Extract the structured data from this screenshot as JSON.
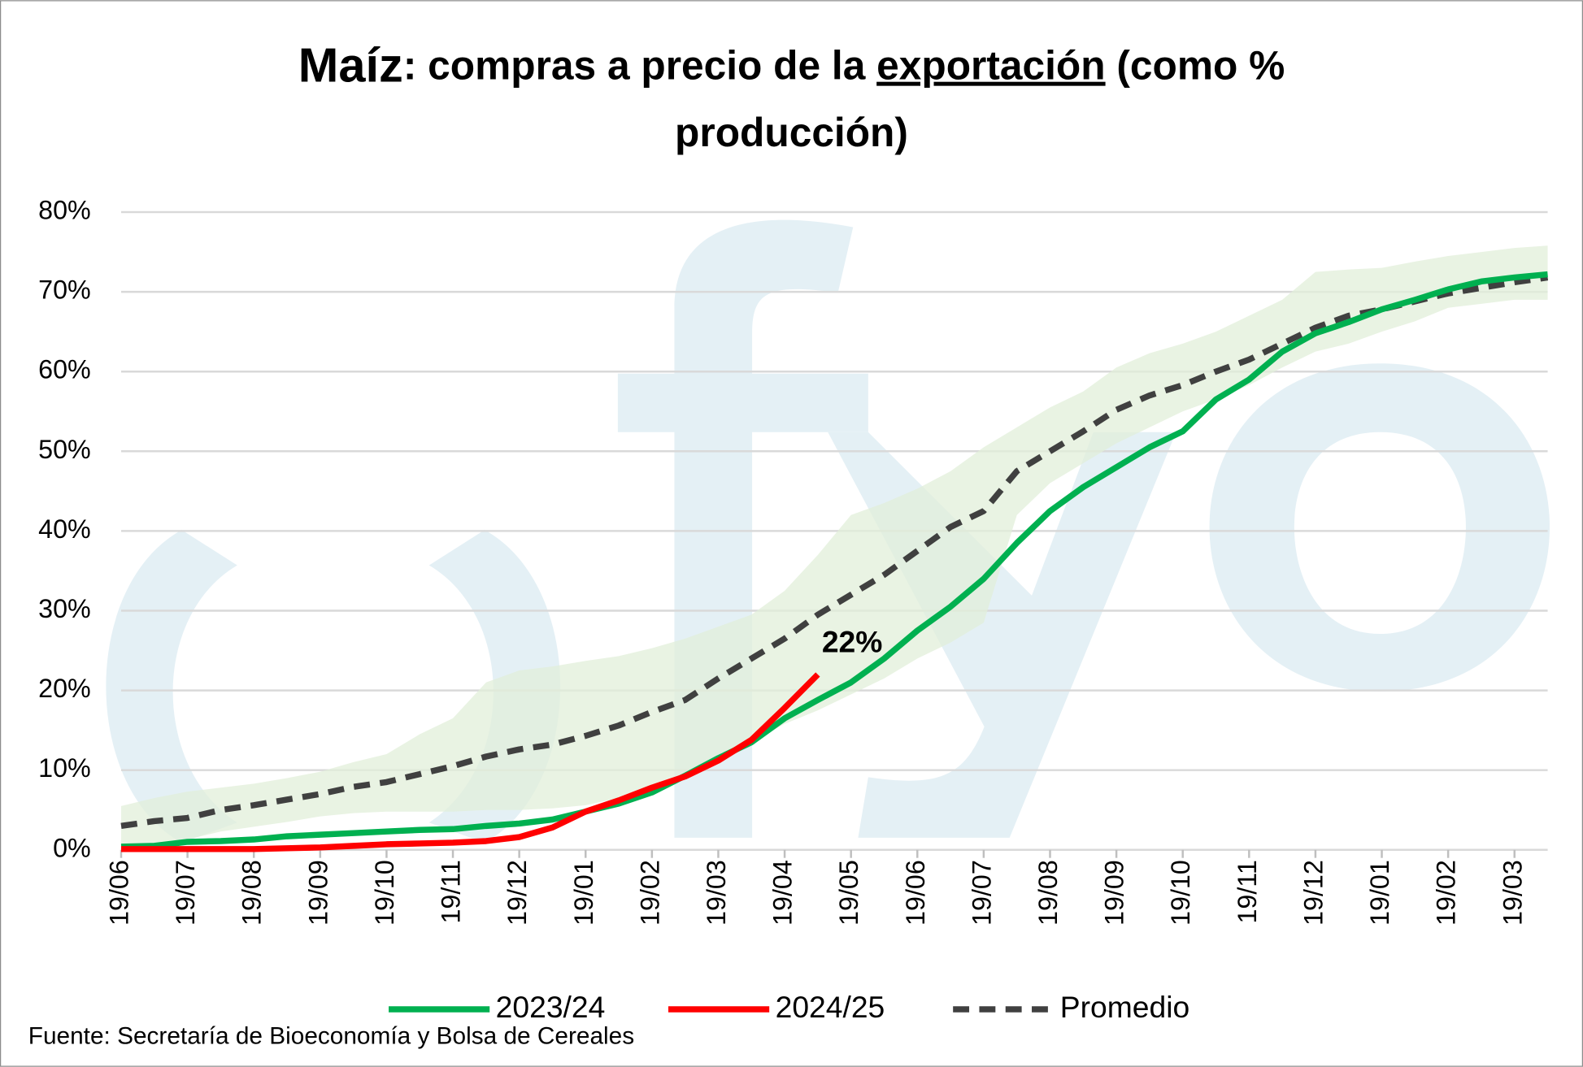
{
  "chart_data": {
    "type": "line",
    "title_parts": [
      "Maíz",
      ": compras a precio de la ",
      "exportación",
      " (como %",
      "producción)"
    ],
    "categories": [
      "19/06",
      null,
      "19/07",
      null,
      "19/08",
      null,
      "19/09",
      null,
      "19/10",
      null,
      "19/11",
      null,
      "19/12",
      null,
      "19/01",
      null,
      "19/02",
      null,
      "19/03",
      null,
      "19/04",
      null,
      "19/05",
      null,
      "19/06",
      null,
      "19/07",
      null,
      "19/08",
      null,
      "19/09",
      null,
      "19/10",
      null,
      "19/11",
      null,
      "19/12",
      null,
      "19/01",
      null,
      "19/02",
      null,
      "19/03",
      null
    ],
    "ylim": [
      0,
      80
    ],
    "yticks": [
      {
        "value": 0,
        "label": "0%"
      },
      {
        "value": 10,
        "label": "10%"
      },
      {
        "value": 20,
        "label": "20%"
      },
      {
        "value": 30,
        "label": "30%"
      },
      {
        "value": 40,
        "label": "40%"
      },
      {
        "value": 50,
        "label": "50%"
      },
      {
        "value": 60,
        "label": "60%"
      },
      {
        "value": 70,
        "label": "70%"
      },
      {
        "value": 80,
        "label": "80%"
      }
    ],
    "grid": true,
    "band": {
      "color": "#e2efda",
      "upper": [
        5.5,
        6.5,
        7.3,
        7.8,
        8.3,
        9,
        9.8,
        11,
        12,
        14.5,
        16.5,
        21,
        22.5,
        23,
        23.7,
        24.3,
        25.3,
        26.5,
        28,
        29.5,
        32.5,
        37,
        42,
        43.5,
        45.3,
        47.5,
        50.5,
        53,
        55.5,
        57.5,
        60.5,
        62.3,
        63.5,
        65,
        67,
        69,
        72.5,
        72.8,
        73,
        73.8,
        74.5,
        75,
        75.5,
        75.8
      ],
      "lower": [
        0,
        0.5,
        1.3,
        2.3,
        2.9,
        3.5,
        4.2,
        4.6,
        4.8,
        4.8,
        4.8,
        5,
        5,
        5.2,
        5.6,
        6.5,
        7.8,
        9.5,
        11.5,
        13.5,
        15.8,
        17.5,
        19.5,
        21.5,
        24,
        26,
        28.5,
        42,
        46,
        48.5,
        51,
        53,
        55,
        56.5,
        58.3,
        60.5,
        62.5,
        63.5,
        65,
        66.3,
        68,
        68.5,
        69,
        69
      ]
    },
    "series": [
      {
        "name": "2023/24",
        "color": "#00b050",
        "dash": false,
        "values": [
          0.4,
          0.5,
          1,
          1.1,
          1.3,
          1.7,
          1.9,
          2.1,
          2.3,
          2.5,
          2.6,
          3,
          3.3,
          3.8,
          4.8,
          5.8,
          7.2,
          9.3,
          11.5,
          13.5,
          16.5,
          18.8,
          21,
          24,
          27.5,
          30.5,
          34,
          38.5,
          42.5,
          45.5,
          48,
          50.5,
          52.5,
          56.5,
          59,
          62.5,
          64.8,
          66.2,
          67.8,
          69,
          70.3,
          71.3,
          71.8,
          72.2
        ]
      },
      {
        "name": "2024/25",
        "color": "#ff0000",
        "dash": false,
        "values": [
          0.1,
          0.1,
          0.1,
          0.1,
          0.1,
          0.2,
          0.3,
          0.5,
          0.7,
          0.8,
          0.9,
          1.1,
          1.6,
          2.8,
          4.8,
          6.2,
          7.8,
          9.2,
          11.2,
          13.8,
          17.8,
          22,
          null,
          null,
          null,
          null,
          null,
          null,
          null,
          null,
          null,
          null,
          null,
          null,
          null,
          null,
          null,
          null,
          null,
          null,
          null,
          null,
          null,
          null
        ],
        "value_labels": [
          null,
          null,
          null,
          null,
          null,
          null,
          null,
          null,
          null,
          null,
          null,
          null,
          null,
          null,
          null,
          null,
          null,
          null,
          null,
          null,
          null,
          "22%",
          null,
          null,
          null,
          null,
          null,
          null,
          null,
          null,
          null,
          null,
          null,
          null,
          null,
          null,
          null,
          null,
          null,
          null,
          null,
          null,
          null,
          null
        ]
      },
      {
        "name": "Promedio",
        "color": "#404040",
        "dash": true,
        "values": [
          3,
          3.6,
          4,
          5,
          5.6,
          6.3,
          7,
          7.9,
          8.5,
          9.5,
          10.5,
          11.7,
          12.6,
          13.2,
          14.3,
          15.6,
          17.3,
          18.8,
          21.5,
          24,
          26.5,
          29.5,
          32,
          34.5,
          37.5,
          40.5,
          42.5,
          47.5,
          50,
          52.5,
          55.2,
          57,
          58.3,
          60,
          61.5,
          63.5,
          65.5,
          67,
          67.8,
          68.8,
          69.8,
          70.5,
          71.2,
          71.8
        ]
      }
    ],
    "source": "Fuente: Secretaría de Bioeconomía y Bolsa de Cereales"
  }
}
